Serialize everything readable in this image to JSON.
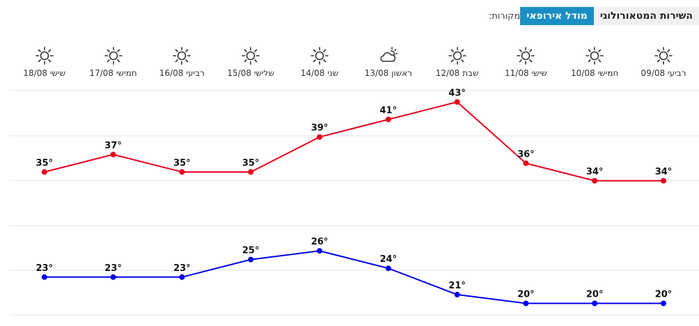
{
  "sources": {
    "label": "מקורות:",
    "options": [
      "מודל אירופאי",
      "השירות המטאורולוגי"
    ],
    "active": 0
  },
  "days": [
    {
      "label": "רביעי 09/08",
      "icon": "sun-icon"
    },
    {
      "label": "חמישי 10/08",
      "icon": "sun-icon"
    },
    {
      "label": "שישי 11/08",
      "icon": "sun-icon"
    },
    {
      "label": "שבת 12/08",
      "icon": "sun-icon"
    },
    {
      "label": "ראשון 13/08",
      "icon": "partly-cloudy-icon"
    },
    {
      "label": "שני 14/08",
      "icon": "sun-icon"
    },
    {
      "label": "שלישי 15/08",
      "icon": "sun-icon"
    },
    {
      "label": "רביעי 16/08",
      "icon": "sun-icon"
    },
    {
      "label": "חמישי 17/08",
      "icon": "sun-icon"
    },
    {
      "label": "שישי 18/08",
      "icon": "sun-icon"
    }
  ],
  "chart_data": {
    "type": "line",
    "categories": [
      "09/08",
      "10/08",
      "11/08",
      "12/08",
      "13/08",
      "14/08",
      "15/08",
      "16/08",
      "17/08",
      "18/08"
    ],
    "series": [
      {
        "values": [
          34,
          34,
          36,
          43,
          41,
          39,
          35,
          35,
          37,
          35
        ],
        "color": "#e8001c"
      },
      {
        "values": [
          20,
          20,
          20,
          21,
          24,
          26,
          25,
          23,
          23,
          23
        ],
        "color": "#0000e6"
      }
    ],
    "value_suffix": "°",
    "grid": true
  }
}
